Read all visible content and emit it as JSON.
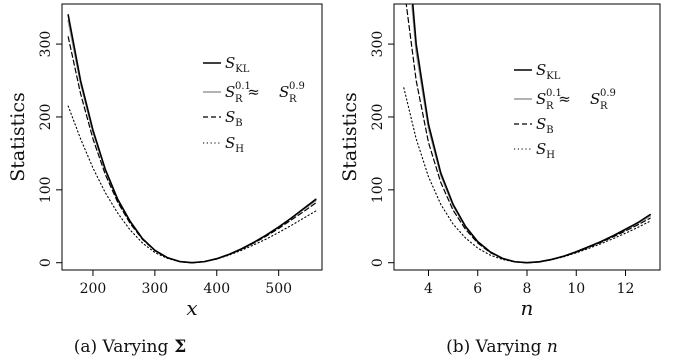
{
  "chart_data": [
    {
      "type": "line",
      "caption": "(a) Varying Σ",
      "caption_prefix": "(a) Varying",
      "caption_symbol": "Σ",
      "xlabel": "x",
      "ylabel": "Statistics",
      "xlim": [
        150,
        570
      ],
      "ylim": [
        -10,
        355
      ],
      "xticks": [
        200,
        300,
        400,
        500
      ],
      "yticks": [
        0,
        100,
        200,
        300
      ],
      "grid": false,
      "legend_position": "right",
      "series": [
        {
          "name": "S_KL",
          "label_main": "S",
          "label_sub": "KL",
          "style": "solid-thick",
          "color": "#000000",
          "x": [
            160,
            180,
            200,
            220,
            240,
            260,
            280,
            300,
            320,
            340,
            360,
            380,
            400,
            420,
            440,
            460,
            480,
            500,
            520,
            540,
            560
          ],
          "y": [
            340,
            250,
            182,
            128,
            87,
            57,
            33,
            17,
            7,
            1.6,
            0,
            1.5,
            5.5,
            11.5,
            19,
            28,
            38,
            49,
            61,
            74,
            87
          ]
        },
        {
          "name": "S_R^0.1 ≈ S_R^0.9",
          "label_main": "S",
          "label_sub": "R",
          "label_sup": "0.1",
          "label_mid": " ≈ ",
          "label_main2": "S",
          "label_sub2": "R",
          "label_sup2": "0.9",
          "style": "solid-gray",
          "color": "#9a9a9a",
          "x": [
            160,
            180,
            200,
            220,
            240,
            260,
            280,
            300,
            320,
            340,
            360,
            380,
            400,
            420,
            440,
            460,
            480,
            500,
            520,
            540,
            560
          ],
          "y": [
            332,
            246,
            179,
            127,
            86,
            56,
            33,
            17,
            7,
            1.6,
            0,
            1.5,
            5.5,
            11.5,
            19,
            28,
            38,
            49,
            61,
            73,
            85
          ]
        },
        {
          "name": "S_B",
          "label_main": "S",
          "label_sub": "B",
          "style": "dashed",
          "color": "#000000",
          "x": [
            160,
            180,
            200,
            220,
            240,
            260,
            280,
            300,
            320,
            340,
            360,
            380,
            400,
            420,
            440,
            460,
            480,
            500,
            520,
            540,
            560
          ],
          "y": [
            310,
            232,
            170,
            121,
            83,
            54,
            32,
            16.5,
            6.8,
            1.6,
            0,
            1.5,
            5.4,
            11.3,
            18.5,
            27,
            36.5,
            47,
            58.5,
            70,
            82
          ]
        },
        {
          "name": "S_H",
          "label_main": "S",
          "label_sub": "H",
          "style": "dotted",
          "color": "#000000",
          "x": [
            160,
            180,
            200,
            220,
            240,
            260,
            280,
            300,
            320,
            340,
            360,
            380,
            400,
            420,
            440,
            460,
            480,
            500,
            520,
            540,
            560
          ],
          "y": [
            215,
            170,
            130,
            96,
            68,
            45,
            27,
            14,
            6,
            1.4,
            0,
            1.4,
            5,
            10.5,
            17,
            24.5,
            32.5,
            41.5,
            51,
            61,
            71
          ]
        }
      ]
    },
    {
      "type": "line",
      "caption": "(b) Varying n",
      "caption_prefix": "(b) Varying",
      "caption_symbol": "n",
      "xlabel": "n",
      "ylabel": "Statistics",
      "xlim": [
        2.6,
        13.4
      ],
      "ylim": [
        -10,
        355
      ],
      "xticks": [
        4,
        6,
        8,
        10,
        12
      ],
      "yticks": [
        0,
        100,
        200,
        300
      ],
      "grid": false,
      "legend_position": "right",
      "series": [
        {
          "name": "S_KL",
          "label_main": "S",
          "label_sub": "KL",
          "style": "solid-thick",
          "color": "#000000",
          "x": [
            3.0,
            3.5,
            4.0,
            4.5,
            5.0,
            5.5,
            6.0,
            6.5,
            7.0,
            7.5,
            8.0,
            8.5,
            9.0,
            9.5,
            10.0,
            10.5,
            11.0,
            11.5,
            12.0,
            12.5,
            13.0
          ],
          "y": [
            500,
            300,
            190,
            123,
            80,
            50,
            29,
            15,
            6,
            1.3,
            0,
            1.2,
            4.5,
            9,
            15,
            22,
            29,
            37,
            46,
            55,
            66
          ]
        },
        {
          "name": "S_R^0.1 ≈ S_R^0.9",
          "label_main": "S",
          "label_sub": "R",
          "label_sup": "0.1",
          "label_mid": " ≈ ",
          "label_main2": "S",
          "label_sub2": "R",
          "label_sup2": "0.9",
          "style": "solid-gray",
          "color": "#9a9a9a",
          "x": [
            3.0,
            3.5,
            4.0,
            4.5,
            5.0,
            5.5,
            6.0,
            6.5,
            7.0,
            7.5,
            8.0,
            8.5,
            9.0,
            9.5,
            10.0,
            10.5,
            11.0,
            11.5,
            12.0,
            12.5,
            13.0
          ],
          "y": [
            480,
            290,
            185,
            120,
            78,
            49,
            28.5,
            14.8,
            6,
            1.3,
            0,
            1.2,
            4.4,
            9,
            14.8,
            21.5,
            28.5,
            36.5,
            45,
            54,
            64
          ]
        },
        {
          "name": "S_B",
          "label_main": "S",
          "label_sub": "B",
          "style": "dashed",
          "color": "#000000",
          "x": [
            3.0,
            3.5,
            4.0,
            4.5,
            5.0,
            5.5,
            6.0,
            6.5,
            7.0,
            7.5,
            8.0,
            8.5,
            9.0,
            9.5,
            10.0,
            10.5,
            11.0,
            11.5,
            12.0,
            12.5,
            13.0
          ],
          "y": [
            380,
            250,
            165,
            110,
            72,
            46,
            27,
            14,
            5.8,
            1.3,
            0,
            1.2,
            4.3,
            8.8,
            14.5,
            21,
            28,
            35.5,
            43.5,
            52,
            61
          ]
        },
        {
          "name": "S_H",
          "label_main": "S",
          "label_sub": "H",
          "style": "dotted",
          "color": "#000000",
          "x": [
            3.0,
            3.5,
            4.0,
            4.5,
            5.0,
            5.5,
            6.0,
            6.5,
            7.0,
            7.5,
            8.0,
            8.5,
            9.0,
            9.5,
            10.0,
            10.5,
            11.0,
            11.5,
            12.0,
            12.5,
            13.0
          ],
          "y": [
            240,
            170,
            118,
            80,
            53,
            34,
            20,
            10.5,
            4.5,
            1.1,
            0,
            1.1,
            4,
            8.2,
            13.5,
            19.5,
            26,
            33,
            40.5,
            48.5,
            57
          ]
        }
      ]
    }
  ]
}
